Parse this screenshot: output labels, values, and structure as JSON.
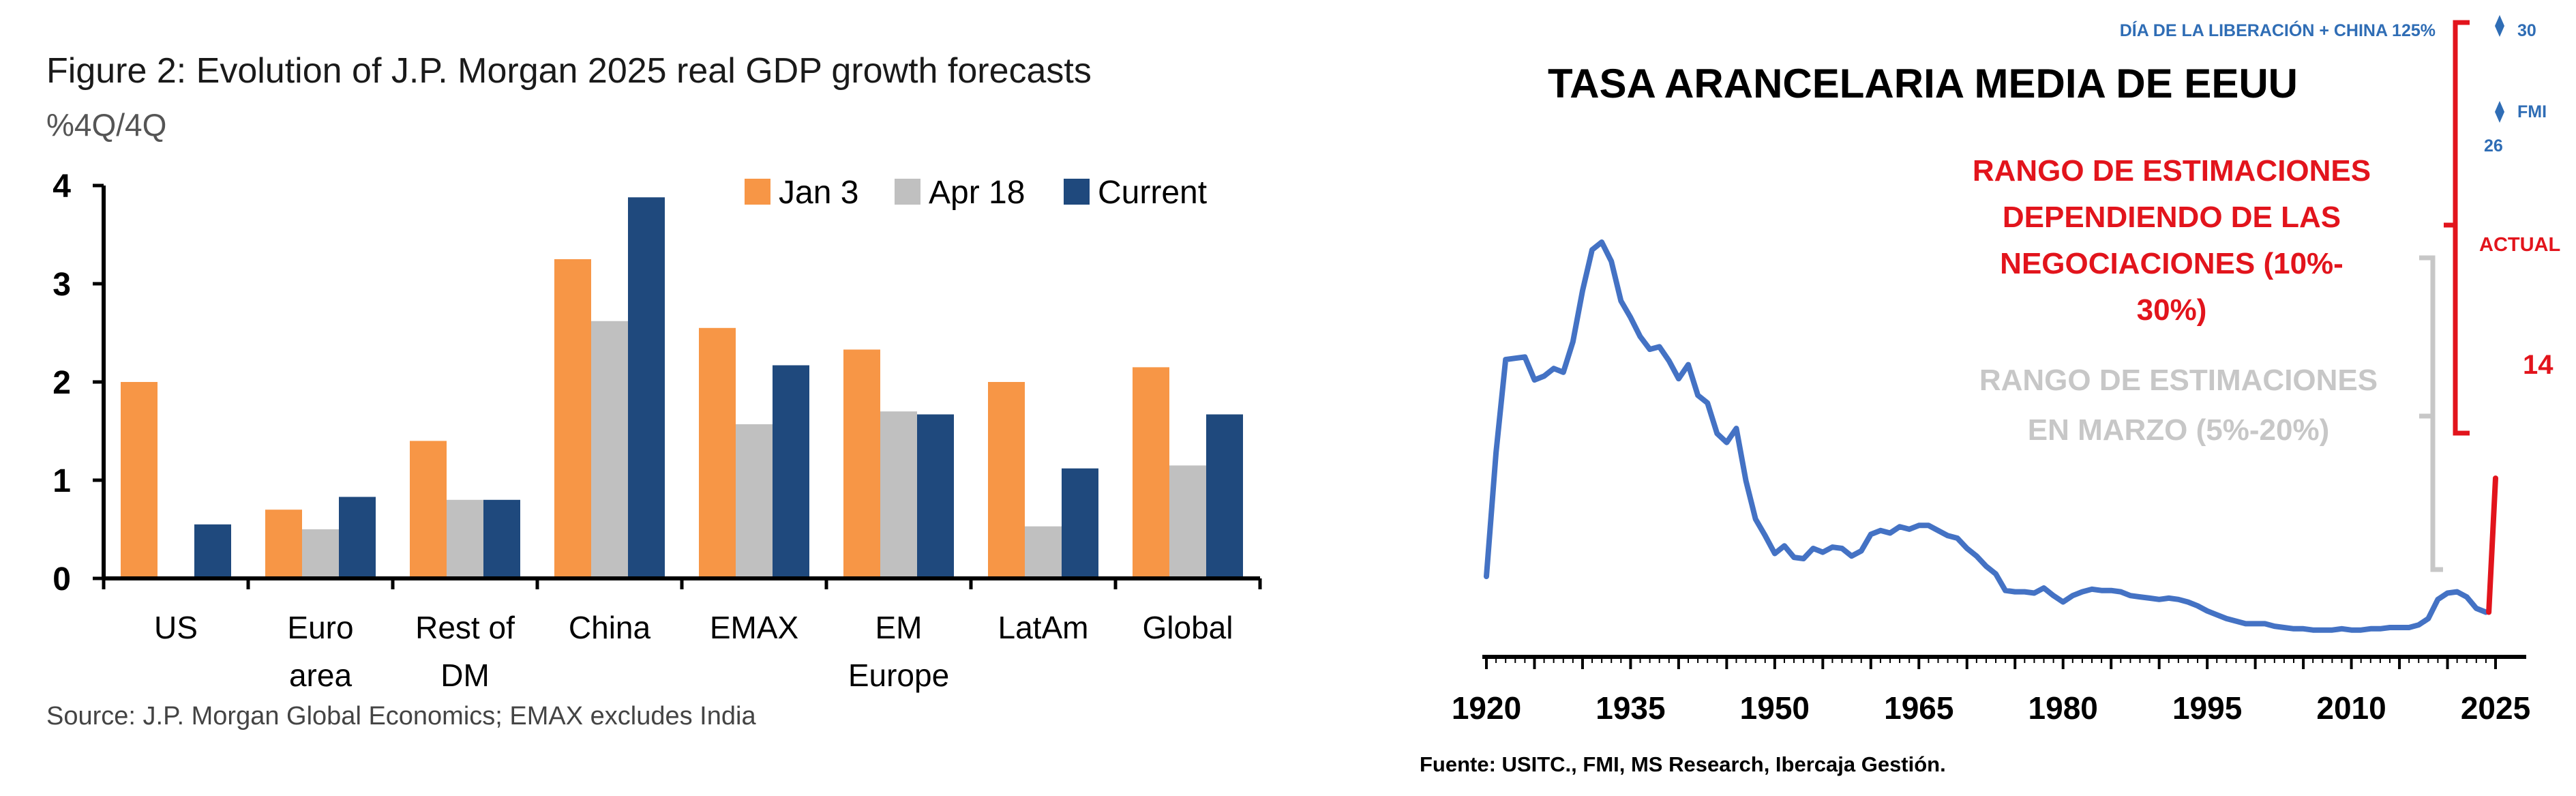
{
  "chart_data": [
    {
      "type": "bar",
      "title": "Figure 2: Evolution of J.P. Morgan 2025 real GDP growth forecasts",
      "subtitle": "%4Q/4Q",
      "categories": [
        [
          "US"
        ],
        [
          "Euro",
          "area"
        ],
        [
          "Rest of",
          "DM"
        ],
        [
          "China"
        ],
        [
          "EMAX"
        ],
        [
          "EM",
          "Europe"
        ],
        [
          "LatAm"
        ],
        [
          "Global"
        ]
      ],
      "series": [
        {
          "name": "Jan 3",
          "color": "#f79646",
          "values": [
            2.0,
            0.7,
            1.4,
            3.25,
            2.55,
            2.33,
            2.0,
            2.15
          ]
        },
        {
          "name": "Apr 18",
          "color": "#c0c0c0",
          "values": [
            null,
            0.5,
            0.8,
            2.62,
            1.57,
            1.7,
            0.53,
            1.15
          ]
        },
        {
          "name": "Current",
          "color": "#1f497d",
          "values": [
            0.55,
            0.83,
            0.8,
            3.88,
            2.17,
            1.67,
            1.12,
            1.67
          ]
        }
      ],
      "ylim": [
        0,
        4
      ],
      "yticks": [
        "0",
        "1",
        "2",
        "3",
        "4"
      ],
      "legend": "top-right",
      "source": "Source: J.P. Morgan Global Economics; EMAX excludes India"
    },
    {
      "type": "line",
      "title": "TASA ARANCELARIA MEDIA DE EEUU",
      "xticks": [
        "1920",
        "1935",
        "1950",
        "1965",
        "1980",
        "1995",
        "2010",
        "2025"
      ],
      "xlim": [
        1920,
        2027
      ],
      "ylim": [
        0,
        35
      ],
      "series": [
        {
          "color": "#4472c4",
          "x": [
            1920,
            1921,
            1922,
            1923,
            1924,
            1925,
            1926,
            1927,
            1928,
            1929,
            1930,
            1931,
            1932,
            1933,
            1934,
            1935,
            1936,
            1937,
            1938,
            1939,
            1940,
            1941,
            1942,
            1943,
            1944,
            1945,
            1946,
            1947,
            1948,
            1949,
            1950,
            1951,
            1952,
            1953,
            1954,
            1955,
            1956,
            1957,
            1958,
            1959,
            1960,
            1961,
            1962,
            1963,
            1964,
            1965,
            1966,
            1967,
            1968,
            1969,
            1970,
            1971,
            1972,
            1973,
            1974,
            1975,
            1976,
            1977,
            1978,
            1979,
            1980,
            1981,
            1982,
            1983,
            1984,
            1985,
            1986,
            1987,
            1988,
            1989,
            1990,
            1991,
            1992,
            1993,
            1994,
            1995,
            1996,
            1997,
            1998,
            1999,
            2000,
            2001,
            2002,
            2003,
            2004,
            2005,
            2006,
            2007,
            2008,
            2009,
            2010,
            2011,
            2012,
            2013,
            2014,
            2015,
            2016,
            2017,
            2018,
            2019,
            2020,
            2021,
            2022,
            2023,
            2024
          ],
          "y": [
            6.3,
            16.0,
            23.3,
            23.4,
            23.5,
            21.7,
            22.0,
            22.6,
            22.3,
            24.7,
            28.7,
            31.9,
            32.5,
            31.0,
            27.9,
            26.6,
            25.1,
            24.1,
            24.3,
            23.2,
            21.8,
            22.9,
            20.5,
            19.9,
            17.5,
            16.8,
            17.9,
            13.8,
            10.8,
            9.5,
            8.1,
            8.7,
            7.8,
            7.7,
            8.5,
            8.2,
            8.6,
            8.5,
            7.9,
            8.3,
            9.6,
            9.9,
            9.7,
            10.2,
            10.0,
            10.3,
            10.3,
            9.9,
            9.5,
            9.3,
            8.5,
            7.9,
            7.1,
            6.5,
            5.2,
            5.1,
            5.1,
            5.0,
            5.4,
            4.8,
            4.3,
            4.8,
            5.1,
            5.3,
            5.2,
            5.2,
            5.1,
            4.8,
            4.7,
            4.6,
            4.5,
            4.6,
            4.5,
            4.3,
            4.0,
            3.6,
            3.3,
            3.0,
            2.8,
            2.6,
            2.6,
            2.6,
            2.4,
            2.3,
            2.2,
            2.2,
            2.1,
            2.1,
            2.1,
            2.2,
            2.1,
            2.1,
            2.2,
            2.2,
            2.3,
            2.3,
            2.3,
            2.5,
            3.0,
            4.5,
            5.0,
            5.1,
            4.7,
            3.8,
            3.5
          ]
        },
        {
          "color": "#e2141c",
          "x": [
            2024.3,
            2025
          ],
          "y": [
            3.5,
            14
          ]
        }
      ],
      "labels": {
        "liberacion": "DÍA DE LA LIBERACIÓN + CHINA 125%",
        "thirty": "30",
        "fmi": "FMI",
        "fmi_val": "26",
        "actual": "ACTUAL",
        "current_val": "14",
        "red_range": [
          "RANGO DE ESTIMACIONES",
          "DEPENDIENDO DE LAS",
          "NEGOCIACIONES (10%-",
          "30%)"
        ],
        "grey_range": [
          "RANGO DE ESTIMACIONES",
          "EN MARZO (5%-20%)"
        ]
      },
      "source": "Fuente: USITC., FMI, MS Research, Ibercaja Gestión."
    }
  ]
}
